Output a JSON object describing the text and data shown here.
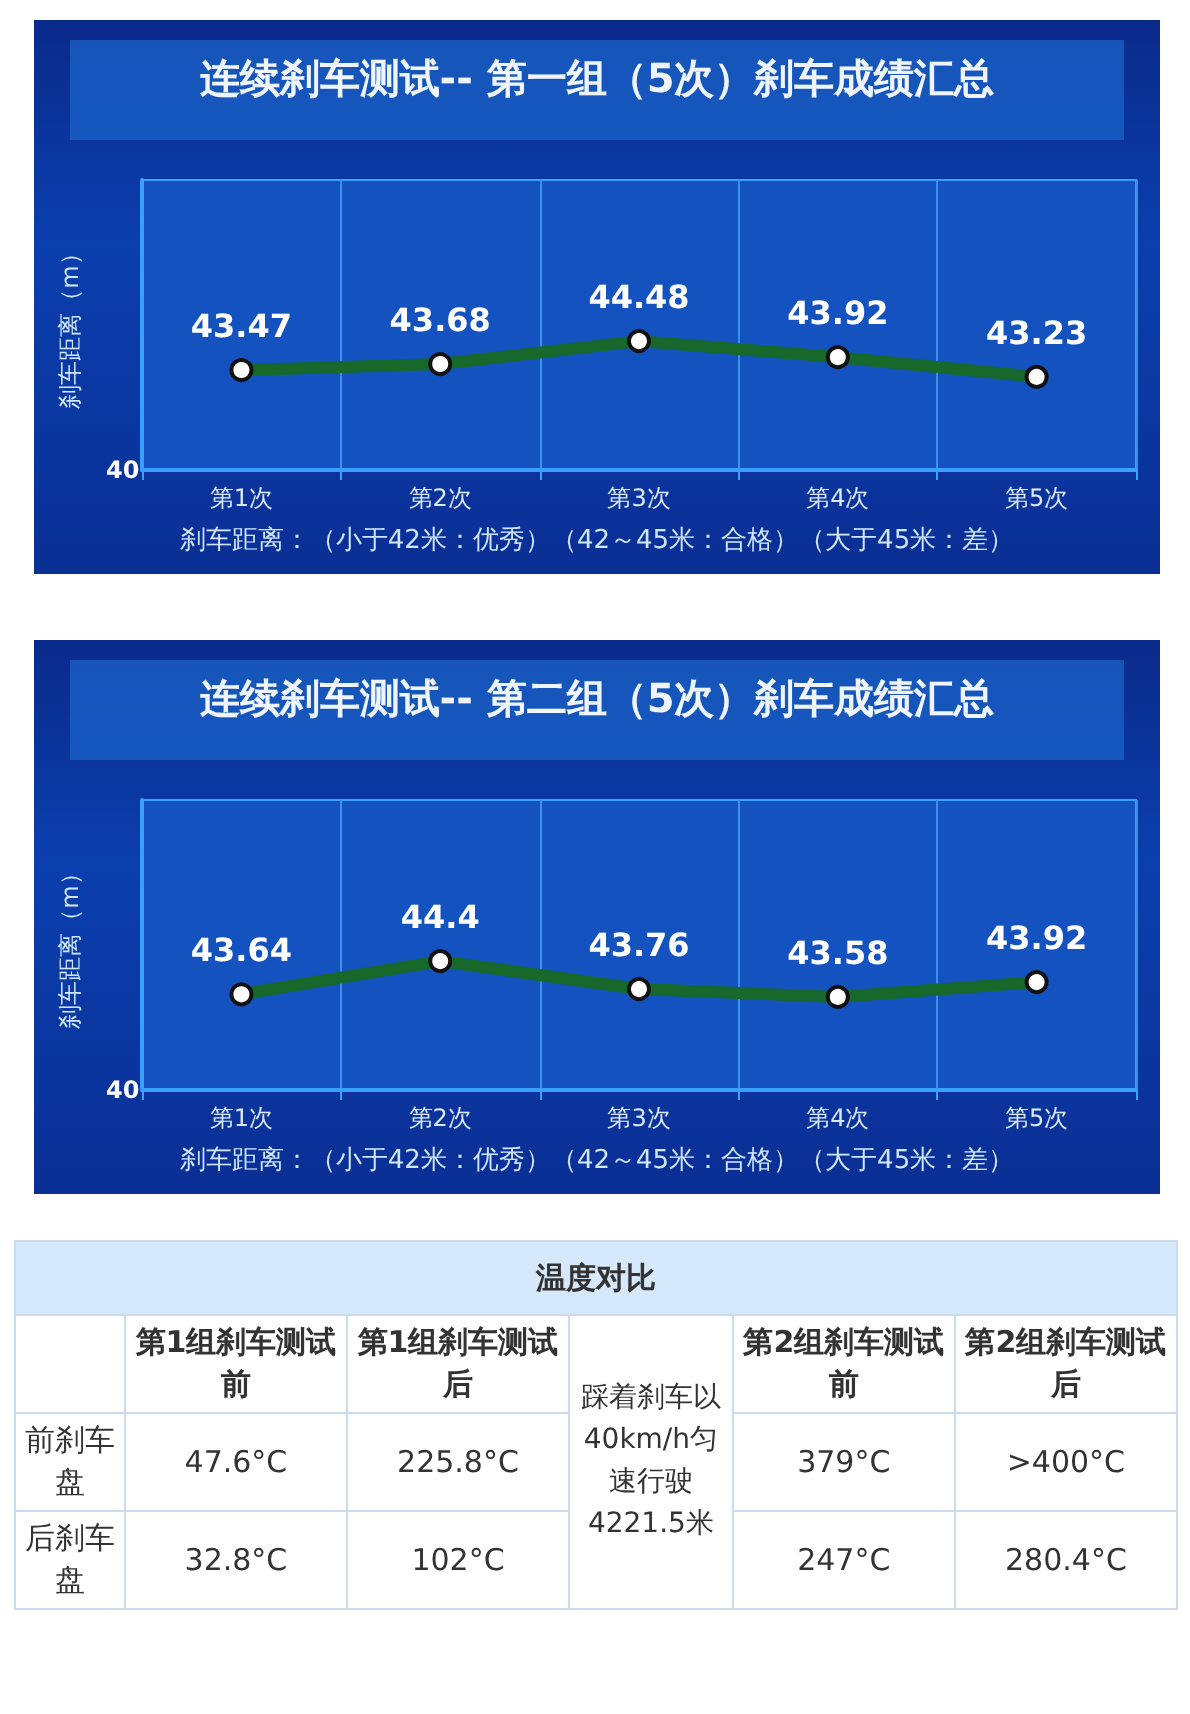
{
  "chart_data": [
    {
      "type": "line",
      "title": "连续刹车测试-- 第一组（5次）刹车成绩汇总",
      "ylabel": "刹车距离（m）",
      "categories": [
        "第1次",
        "第2次",
        "第3次",
        "第4次",
        "第5次"
      ],
      "series": [
        {
          "color": "#16692a",
          "values": [
            43.47,
            43.68,
            44.48,
            43.92,
            43.23
          ]
        }
      ],
      "grid": "x",
      "marker": "circle",
      "data_labels": true,
      "annotations": [
        "刹车距离：（小于42米：优秀）（42～45米：合格）（大于45米：差）",
        "40"
      ]
    },
    {
      "type": "line",
      "title": "连续刹车测试-- 第二组（5次）刹车成绩汇总",
      "ylabel": "刹车距离（m）",
      "categories": [
        "第1次",
        "第2次",
        "第3次",
        "第4次",
        "第5次"
      ],
      "series": [
        {
          "color": "#16692a",
          "values": [
            43.64,
            44.4,
            43.76,
            43.58,
            43.92
          ]
        }
      ],
      "grid": "x",
      "marker": "circle",
      "data_labels": true,
      "annotations": [
        "刹车距离：（小于42米：优秀）（42～45米：合格）（大于45米：差）",
        "40"
      ]
    },
    {
      "type": "other",
      "title": "温度对比",
      "categories": [
        "第1组刹车测试前",
        "第1组刹车测试后",
        "第2组刹车测试前",
        "第2组刹车测试后"
      ],
      "y_categories": [
        "前刹车盘",
        "后刹车盘"
      ],
      "cell_labels": [
        [
          "47.6°C",
          "225.8°C",
          "379°C",
          ">400°C"
        ],
        [
          "32.8°C",
          "102°C",
          "247°C",
          "280.4°C"
        ]
      ],
      "annotations": [
        "踩着刹车以40km/h匀速行驶4221.5米"
      ]
    }
  ]
}
